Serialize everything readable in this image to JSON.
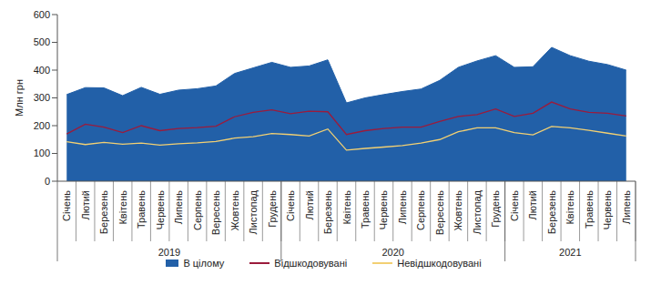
{
  "chart_data": {
    "type": "area",
    "y_label": "Млн грн",
    "categories": [
      "Січень",
      "Лютий",
      "Березень",
      "Квітень",
      "Травень",
      "Червень",
      "Липень",
      "Серпень",
      "Вересень",
      "Жовтень",
      "Листопад",
      "Грудень",
      "Січень",
      "Лютий",
      "Березень",
      "Квітень",
      "Травень",
      "Червень",
      "Липень",
      "Серпень",
      "Вересень",
      "Жовтень",
      "Листопад",
      "Грудень",
      "Січень",
      "Лютий",
      "Березень",
      "Квітень",
      "Травень",
      "Червень",
      "Липень"
    ],
    "groups": [
      {
        "label": "2019",
        "count": 12
      },
      {
        "label": "2020",
        "count": 12
      },
      {
        "label": "2021",
        "count": 7
      }
    ],
    "series": [
      {
        "name": "В цілому",
        "type": "area",
        "color": "#2260a8",
        "values": [
          312,
          337,
          336,
          308,
          338,
          313,
          328,
          333,
          343,
          388,
          408,
          428,
          410,
          415,
          437,
          282,
          300,
          312,
          323,
          332,
          363,
          410,
          433,
          452,
          410,
          412,
          482,
          452,
          432,
          420,
          400
        ]
      },
      {
        "name": "Відшкодовувані",
        "type": "line",
        "color": "#9b1b3c",
        "values": [
          170,
          205,
          195,
          175,
          200,
          182,
          190,
          193,
          198,
          232,
          248,
          257,
          243,
          252,
          250,
          168,
          182,
          190,
          195,
          195,
          215,
          233,
          240,
          260,
          233,
          245,
          285,
          260,
          248,
          245,
          235
        ]
      },
      {
        "name": "Невідшкодовувані",
        "type": "line",
        "color": "#f2d073",
        "values": [
          142,
          132,
          140,
          133,
          137,
          130,
          135,
          138,
          143,
          155,
          160,
          172,
          168,
          163,
          188,
          112,
          118,
          123,
          128,
          137,
          150,
          178,
          192,
          192,
          175,
          167,
          197,
          192,
          183,
          173,
          163
        ]
      }
    ],
    "ylim": [
      0,
      600
    ],
    "yticks": [
      0,
      100,
      200,
      300,
      400,
      500,
      600
    ],
    "grid": false,
    "legend": "bottom"
  }
}
